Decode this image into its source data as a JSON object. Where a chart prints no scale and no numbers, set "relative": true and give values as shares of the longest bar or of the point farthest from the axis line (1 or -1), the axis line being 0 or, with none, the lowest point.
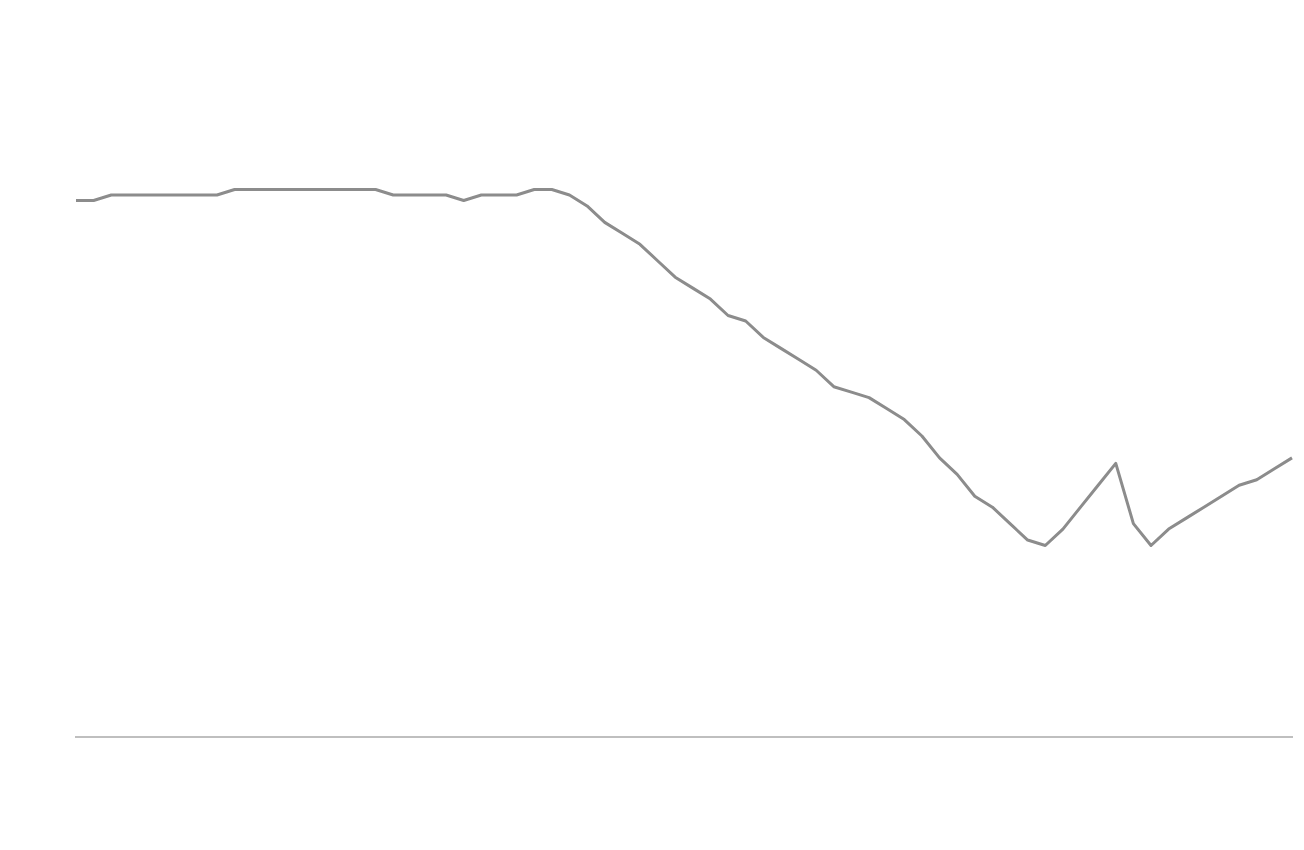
{
  "chart_data": {
    "type": "line",
    "relative": true,
    "marker": "none",
    "line_style": "solid",
    "legend": false,
    "categories": [
      null,
      null,
      null,
      null,
      null,
      null,
      null,
      null,
      null,
      null,
      null,
      null,
      null,
      null,
      null,
      null,
      null,
      null,
      null,
      null,
      null,
      null,
      null,
      null,
      null,
      null,
      null,
      null,
      null,
      null,
      null,
      null,
      null,
      null,
      null,
      null,
      null,
      null,
      null,
      null,
      null,
      null,
      null,
      null,
      null,
      null,
      null,
      null,
      null,
      null,
      null,
      null,
      null,
      null,
      null,
      null,
      null,
      null,
      null,
      null,
      null,
      null,
      null,
      null,
      null,
      null,
      null,
      null,
      null,
      null
    ],
    "series": [
      {
        "color": "#8c8c8c",
        "values": [
          0.98,
          0.98,
          0.99,
          0.99,
          0.99,
          0.99,
          0.99,
          0.99,
          0.99,
          1.0,
          1.0,
          1.0,
          1.0,
          1.0,
          1.0,
          1.0,
          1.0,
          1.0,
          0.99,
          0.99,
          0.99,
          0.99,
          0.98,
          0.99,
          0.99,
          0.99,
          1.0,
          1.0,
          0.99,
          0.97,
          0.94,
          0.92,
          0.9,
          0.87,
          0.84,
          0.82,
          0.8,
          0.77,
          0.76,
          0.73,
          0.71,
          0.69,
          0.67,
          0.64,
          0.63,
          0.62,
          0.6,
          0.58,
          0.55,
          0.51,
          0.48,
          0.44,
          0.42,
          0.39,
          0.36,
          0.35,
          0.38,
          0.42,
          0.46,
          0.5,
          0.39,
          0.35,
          0.38,
          0.4,
          0.42,
          0.44,
          0.46,
          0.47,
          0.49,
          0.51
        ]
      }
    ]
  }
}
